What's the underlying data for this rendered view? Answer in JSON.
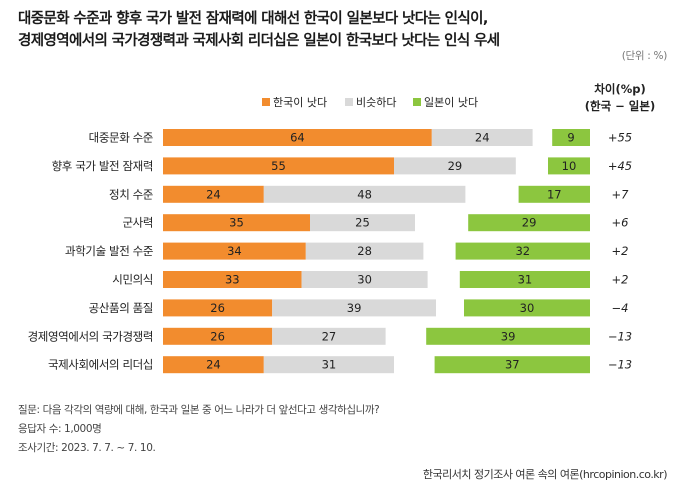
{
  "title": {
    "line1": "대중문화 수준과 향후 국가 발전 잠재력에 대해선 한국이 일본보다 낫다는 인식이,",
    "line2": "경제영역에서의 국가경쟁력과 국제사회 리더십은 일본이 한국보다 낫다는 인식 우세"
  },
  "unit_label": "(단위 : %)",
  "diff_header": {
    "line1": "차이(%p)",
    "line2": "(한국 − 일본)"
  },
  "colors": {
    "korea": "#F28C2E",
    "similar": "#D9D9D9",
    "japan": "#8CC63F"
  },
  "chart_data": {
    "type": "bar",
    "stacked": true,
    "orientation": "horizontal",
    "categories": [
      "대중문화 수준",
      "향후 국가 발전 잠재력",
      "정치 수준",
      "군사력",
      "과학기술 발전 수준",
      "시민의식",
      "공산품의 품질",
      "경제영역에서의 국가경쟁력",
      "국제사회에서의 리더십"
    ],
    "series": [
      {
        "name": "한국이 낫다",
        "values": [
          64,
          55,
          24,
          35,
          34,
          33,
          26,
          26,
          24
        ]
      },
      {
        "name": "비슷하다",
        "values": [
          24,
          29,
          48,
          25,
          28,
          30,
          39,
          27,
          31
        ]
      },
      {
        "name": "일본이 낫다",
        "values": [
          9,
          10,
          17,
          29,
          32,
          31,
          30,
          39,
          37
        ]
      }
    ],
    "differences": [
      "+55",
      "+45",
      "+7",
      "+6",
      "+2",
      "+2",
      "−4",
      "−13",
      "−13"
    ],
    "legend_position": "top",
    "grid": false
  },
  "notes": {
    "question": "질문: 다음 각각의 역량에 대해, 한국과 일본 중 어느 나라가 더 앞선다고 생각하십니까?",
    "respondents": "응답자 수: 1,000명",
    "period": "조사기간: 2023. 7. 7. ~ 7. 10."
  },
  "source": "한국리서치 정기조사 여론 속의 여론(hrcopinion.co.kr)"
}
